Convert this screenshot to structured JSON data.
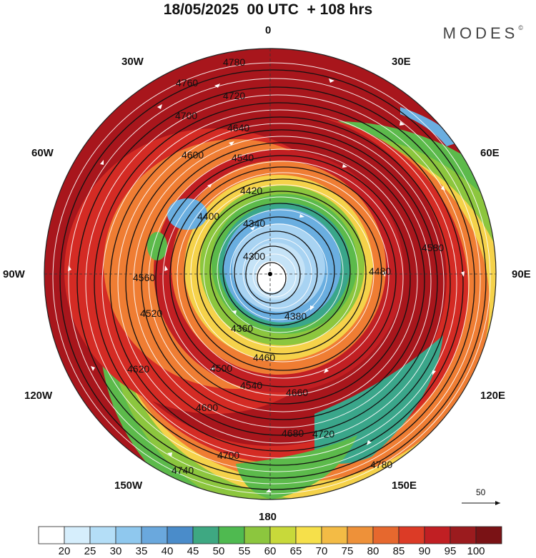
{
  "header": {
    "title": "18/05/2025  00 UTC  + 108 hrs",
    "brand": "MODES",
    "brand_mark": "©"
  },
  "longitude_labels": {
    "n0": "0",
    "e30": "30E",
    "e60": "60E",
    "e90": "90E",
    "e120": "120E",
    "e150": "150E",
    "s180": "180",
    "w150": "150W",
    "w120": "120W",
    "w90": "90W",
    "w60": "60W",
    "w30": "30W"
  },
  "contour_labels": [
    "4780",
    "4760",
    "4720",
    "4700",
    "4640",
    "4600",
    "4540",
    "4420",
    "4400",
    "4340",
    "4300",
    "4380",
    "4360",
    "4460",
    "4500",
    "4540",
    "4600",
    "4620",
    "4660",
    "4680",
    "4700",
    "4720",
    "4740",
    "4780",
    "4520",
    "4560",
    "4580",
    "4480"
  ],
  "vector_legend": {
    "value": "50"
  },
  "colorbar": {
    "labels": [
      "20",
      "25",
      "30",
      "35",
      "40",
      "45",
      "50",
      "55",
      "60",
      "65",
      "70",
      "75",
      "80",
      "85",
      "90",
      "95",
      "100"
    ],
    "colors": [
      "#ffffff",
      "#d6eefc",
      "#b4def7",
      "#8fc8ee",
      "#6aa8dd",
      "#4a8cca",
      "#3ea882",
      "#4fba50",
      "#8cc63e",
      "#c8d93a",
      "#f6e04a",
      "#f3bb45",
      "#ee9139",
      "#e6682e",
      "#dc3b26",
      "#c11f23",
      "#9b1b1e",
      "#7a1215"
    ]
  },
  "map_colors": {
    "deep_red": "#a8161c",
    "red": "#d42b24",
    "orange": "#ef7d33",
    "yellow": "#f5d24a",
    "green": "#5cba4b",
    "teal": "#3aa68a",
    "blue": "#6aaee0",
    "light_blue": "#c5e3f7"
  }
}
